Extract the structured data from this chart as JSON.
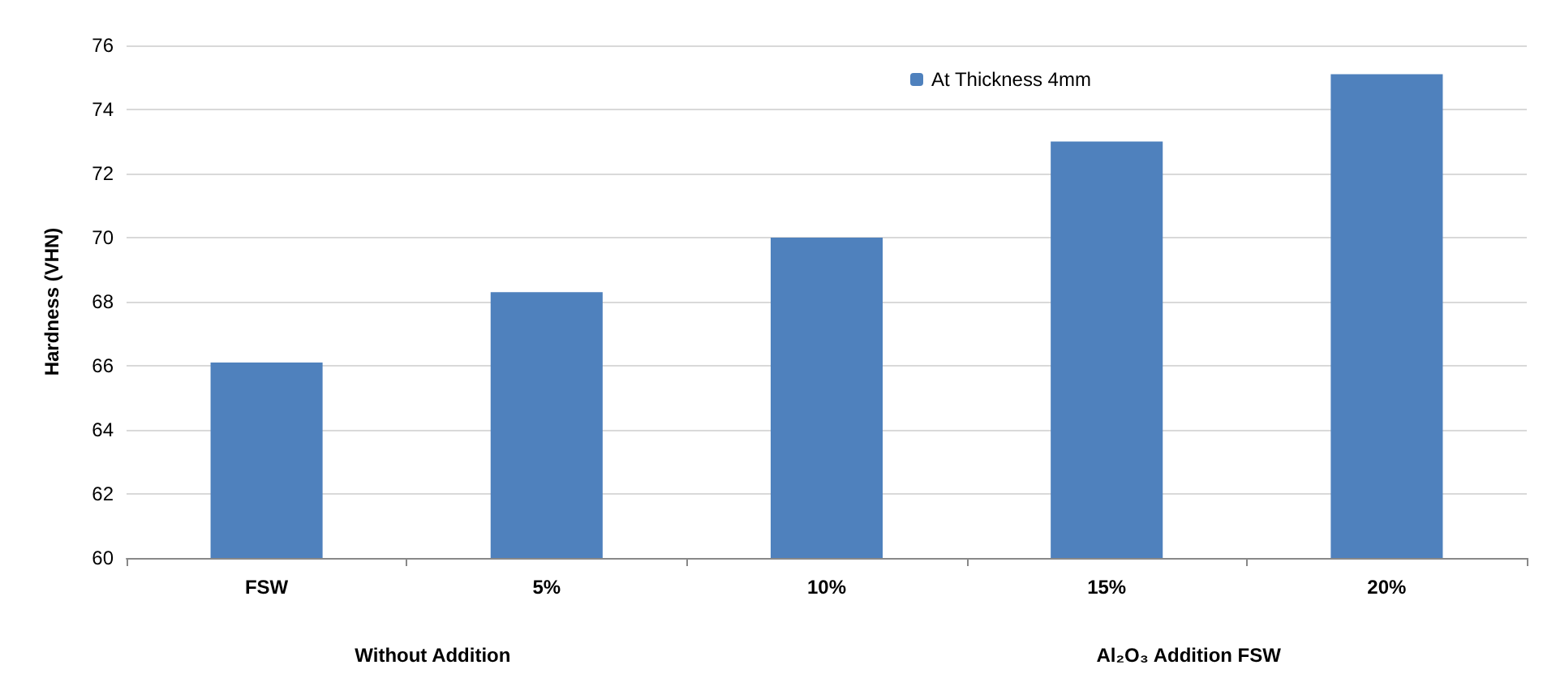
{
  "chart_data": {
    "type": "bar",
    "ylabel": "Hardness (VHN)",
    "categories": [
      "FSW",
      "5%",
      "10%",
      "15%",
      "20%"
    ],
    "series": [
      {
        "name": "At Thickness 4mm",
        "color": "#4f81bd",
        "values": [
          66.1,
          68.3,
          70.0,
          73.0,
          75.1
        ]
      }
    ],
    "ylim": [
      60,
      76
    ],
    "yticks": [
      60,
      62,
      64,
      66,
      68,
      70,
      72,
      74,
      76
    ],
    "grid": "y",
    "legend": "top right",
    "annotations": [
      "Without Addition",
      "Al₂O₃ Addition FSW"
    ]
  }
}
